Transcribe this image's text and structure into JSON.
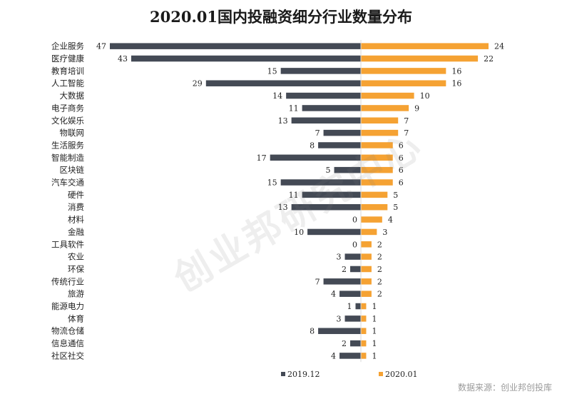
{
  "chart_data": {
    "type": "bar",
    "orientation": "horizontal-diverging",
    "title": "2020.01国内投融资细分行业数量分布",
    "categories": [
      "企业服务",
      "医疗健康",
      "教育培训",
      "人工智能",
      "大数据",
      "电子商务",
      "文化娱乐",
      "物联网",
      "生活服务",
      "智能制造",
      "区块链",
      "汽车交通",
      "硬件",
      "消费",
      "材料",
      "金融",
      "工具软件",
      "农业",
      "环保",
      "传统行业",
      "旅游",
      "能源电力",
      "体育",
      "物流仓储",
      "信息通信",
      "社区社交"
    ],
    "series": [
      {
        "name": "2019.12",
        "color": "#444a55",
        "side": "left",
        "values": [
          47,
          43,
          15,
          29,
          14,
          11,
          13,
          7,
          8,
          17,
          5,
          15,
          11,
          13,
          0,
          10,
          0,
          3,
          2,
          7,
          4,
          1,
          3,
          8,
          2,
          4
        ]
      },
      {
        "name": "2020.01",
        "color": "#f5a233",
        "side": "right",
        "values": [
          24,
          22,
          16,
          16,
          10,
          9,
          7,
          7,
          6,
          6,
          6,
          6,
          5,
          5,
          4,
          3,
          2,
          2,
          2,
          2,
          2,
          1,
          1,
          1,
          1,
          1
        ]
      }
    ],
    "legend_position": "bottom",
    "grid": false
  },
  "watermark": "创业邦研究中心",
  "source_note": "数据来源：创业邦创投库"
}
